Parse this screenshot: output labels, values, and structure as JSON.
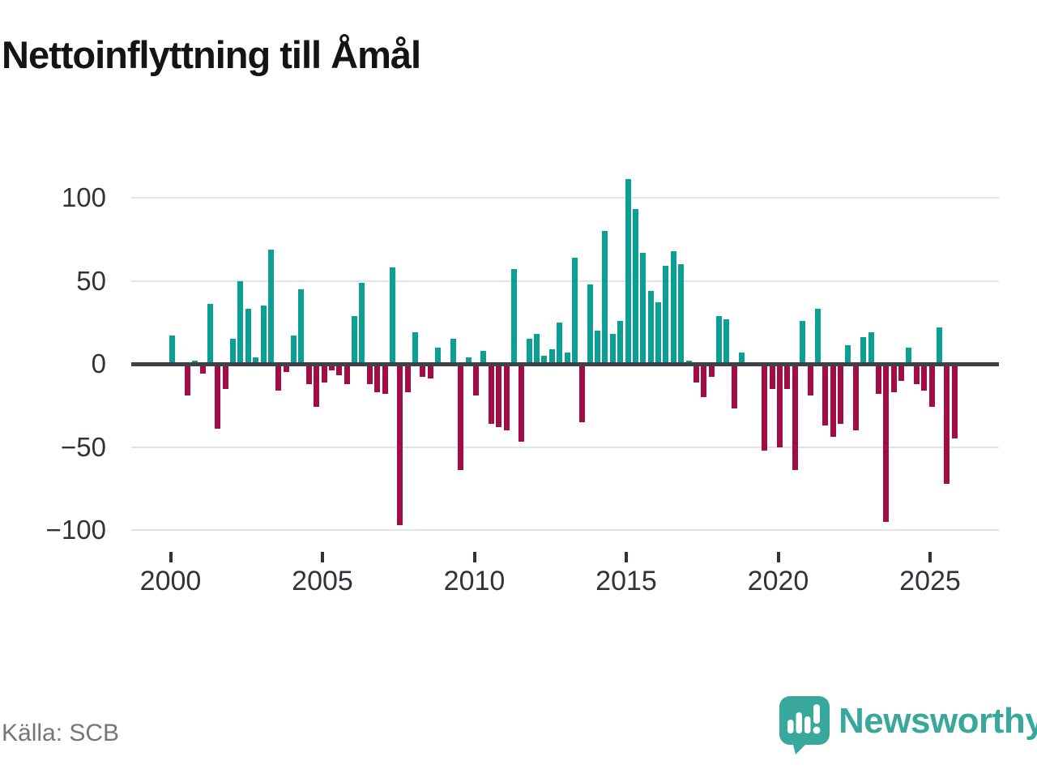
{
  "title": "Nettoinflyttning till Åmål",
  "source": "Källa: SCB",
  "branding": {
    "logo_text": "Newsworthy",
    "logo_icon": "bar-chart-speech-bubble-icon"
  },
  "colors": {
    "positive": "#0ca095",
    "negative": "#a30d45",
    "axis": "#3d4249",
    "gridline": "#e3e3e3",
    "tick_label": "#30343a",
    "title": "#141414",
    "source_text": "#767676",
    "brand": "#38a79c"
  },
  "chart_data": {
    "type": "bar",
    "title": "Nettoinflyttning till Åmål",
    "frequency": "quarterly",
    "legend": "none",
    "grid": "horizontal",
    "x_axis": {
      "tick_labels": [
        "2000",
        "2005",
        "2010",
        "2015",
        "2020",
        "2025"
      ]
    },
    "y_axis": {
      "tick_labels": [
        "100",
        "50",
        "0",
        "−50",
        "−100"
      ],
      "tick_values": [
        100,
        50,
        0,
        -50,
        -100
      ],
      "range": [
        -110,
        118
      ]
    },
    "periods": [
      "2000Q1",
      "2000Q2",
      "2000Q3",
      "2000Q4",
      "2001Q1",
      "2001Q2",
      "2001Q3",
      "2001Q4",
      "2002Q1",
      "2002Q2",
      "2002Q3",
      "2002Q4",
      "2003Q1",
      "2003Q2",
      "2003Q3",
      "2003Q4",
      "2004Q1",
      "2004Q2",
      "2004Q3",
      "2004Q4",
      "2005Q1",
      "2005Q2",
      "2005Q3",
      "2005Q4",
      "2006Q1",
      "2006Q2",
      "2006Q3",
      "2006Q4",
      "2007Q1",
      "2007Q2",
      "2007Q3",
      "2007Q4",
      "2008Q1",
      "2008Q2",
      "2008Q3",
      "2008Q4",
      "2009Q1",
      "2009Q2",
      "2009Q3",
      "2009Q4",
      "2010Q1",
      "2010Q2",
      "2010Q3",
      "2010Q4",
      "2011Q1",
      "2011Q2",
      "2011Q3",
      "2011Q4",
      "2012Q1",
      "2012Q2",
      "2012Q3",
      "2012Q4",
      "2013Q1",
      "2013Q2",
      "2013Q3",
      "2013Q4",
      "2014Q1",
      "2014Q2",
      "2014Q3",
      "2014Q4",
      "2015Q1",
      "2015Q2",
      "2015Q3",
      "2015Q4",
      "2016Q1",
      "2016Q2",
      "2016Q3",
      "2016Q4",
      "2017Q1",
      "2017Q2",
      "2017Q3",
      "2017Q4",
      "2018Q1",
      "2018Q2",
      "2018Q3",
      "2018Q4",
      "2019Q1",
      "2019Q2",
      "2019Q3",
      "2019Q4",
      "2020Q1",
      "2020Q2",
      "2020Q3",
      "2020Q4",
      "2021Q1",
      "2021Q2",
      "2021Q3",
      "2021Q4",
      "2022Q1",
      "2022Q2",
      "2022Q3",
      "2022Q4",
      "2023Q1",
      "2023Q2",
      "2023Q3",
      "2023Q4",
      "2024Q1",
      "2024Q2",
      "2024Q3",
      "2024Q4",
      "2025Q1",
      "2025Q2",
      "2025Q3",
      "2025Q4"
    ],
    "values": [
      17,
      0,
      -19,
      2,
      -6,
      36,
      -39,
      -15,
      15,
      50,
      33,
      4,
      35,
      69,
      -16,
      -5,
      17,
      45,
      -12,
      -26,
      -11,
      -4,
      -7,
      -12,
      29,
      49,
      -12,
      -17,
      -18,
      58,
      -97,
      -17,
      19,
      -8,
      -9,
      10,
      0,
      15,
      -64,
      4,
      -19,
      8,
      -36,
      -38,
      -40,
      57,
      -47,
      15,
      18,
      5,
      9,
      25,
      7,
      64,
      -35,
      48,
      20,
      80,
      18,
      26,
      111,
      93,
      67,
      44,
      37,
      59,
      68,
      60,
      2,
      -11,
      -20,
      -8,
      29,
      27,
      -27,
      7,
      0,
      0,
      -52,
      -15,
      -50,
      -15,
      -64,
      26,
      -19,
      33,
      -37,
      -44,
      -36,
      11,
      -40,
      16,
      19,
      -18,
      -95,
      -17,
      -10,
      10,
      -12,
      -16,
      -26,
      22,
      -72,
      -45
    ]
  }
}
